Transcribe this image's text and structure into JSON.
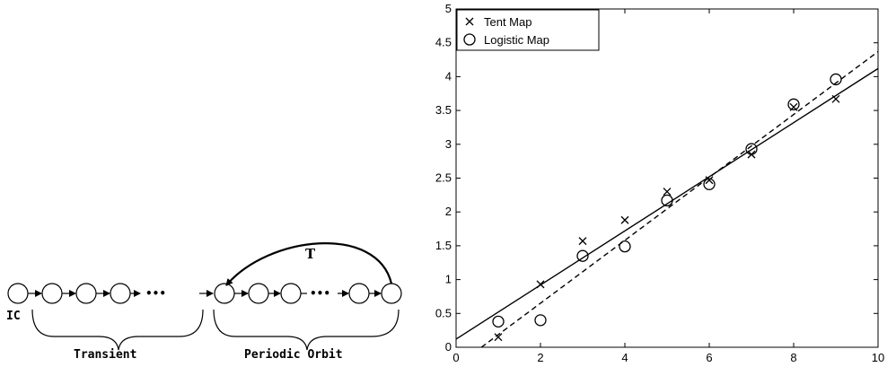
{
  "diagram": {
    "ic_label": "IC",
    "transient_label": "Transient",
    "periodic_label": "Periodic Orbit",
    "map_label": "T",
    "ellipsis": "•••"
  },
  "chart_data": {
    "type": "scatter",
    "title": "",
    "xlabel": "",
    "ylabel": "",
    "xlim": [
      0,
      10
    ],
    "ylim": [
      0,
      5
    ],
    "xticks": [
      "0",
      "2",
      "4",
      "6",
      "8",
      "10"
    ],
    "yticks": [
      "0",
      "0.5",
      "1",
      "1.5",
      "2",
      "2.5",
      "3",
      "3.5",
      "4",
      "4.5",
      "5"
    ],
    "grid": false,
    "legend_position": "top-left",
    "series": [
      {
        "name": "Tent Map",
        "marker": "x",
        "x": [
          1,
          2,
          3,
          4,
          5,
          6,
          7,
          8,
          9
        ],
        "y": [
          0.15,
          0.93,
          1.57,
          1.88,
          2.3,
          2.47,
          2.85,
          3.55,
          3.67
        ]
      },
      {
        "name": "Logistic Map",
        "marker": "o",
        "x": [
          1,
          2,
          3,
          4,
          5,
          6,
          7,
          8,
          9
        ],
        "y": [
          0.38,
          0.4,
          1.35,
          1.49,
          2.17,
          2.41,
          2.93,
          3.59,
          3.96
        ]
      }
    ],
    "fit_lines": [
      {
        "series": "Tent Map",
        "style": "solid",
        "x": [
          0,
          10
        ],
        "y": [
          0.12,
          4.12
        ]
      },
      {
        "series": "Logistic Map",
        "style": "dashed",
        "x": [
          0.6,
          10
        ],
        "y": [
          0,
          4.37
        ]
      }
    ]
  }
}
